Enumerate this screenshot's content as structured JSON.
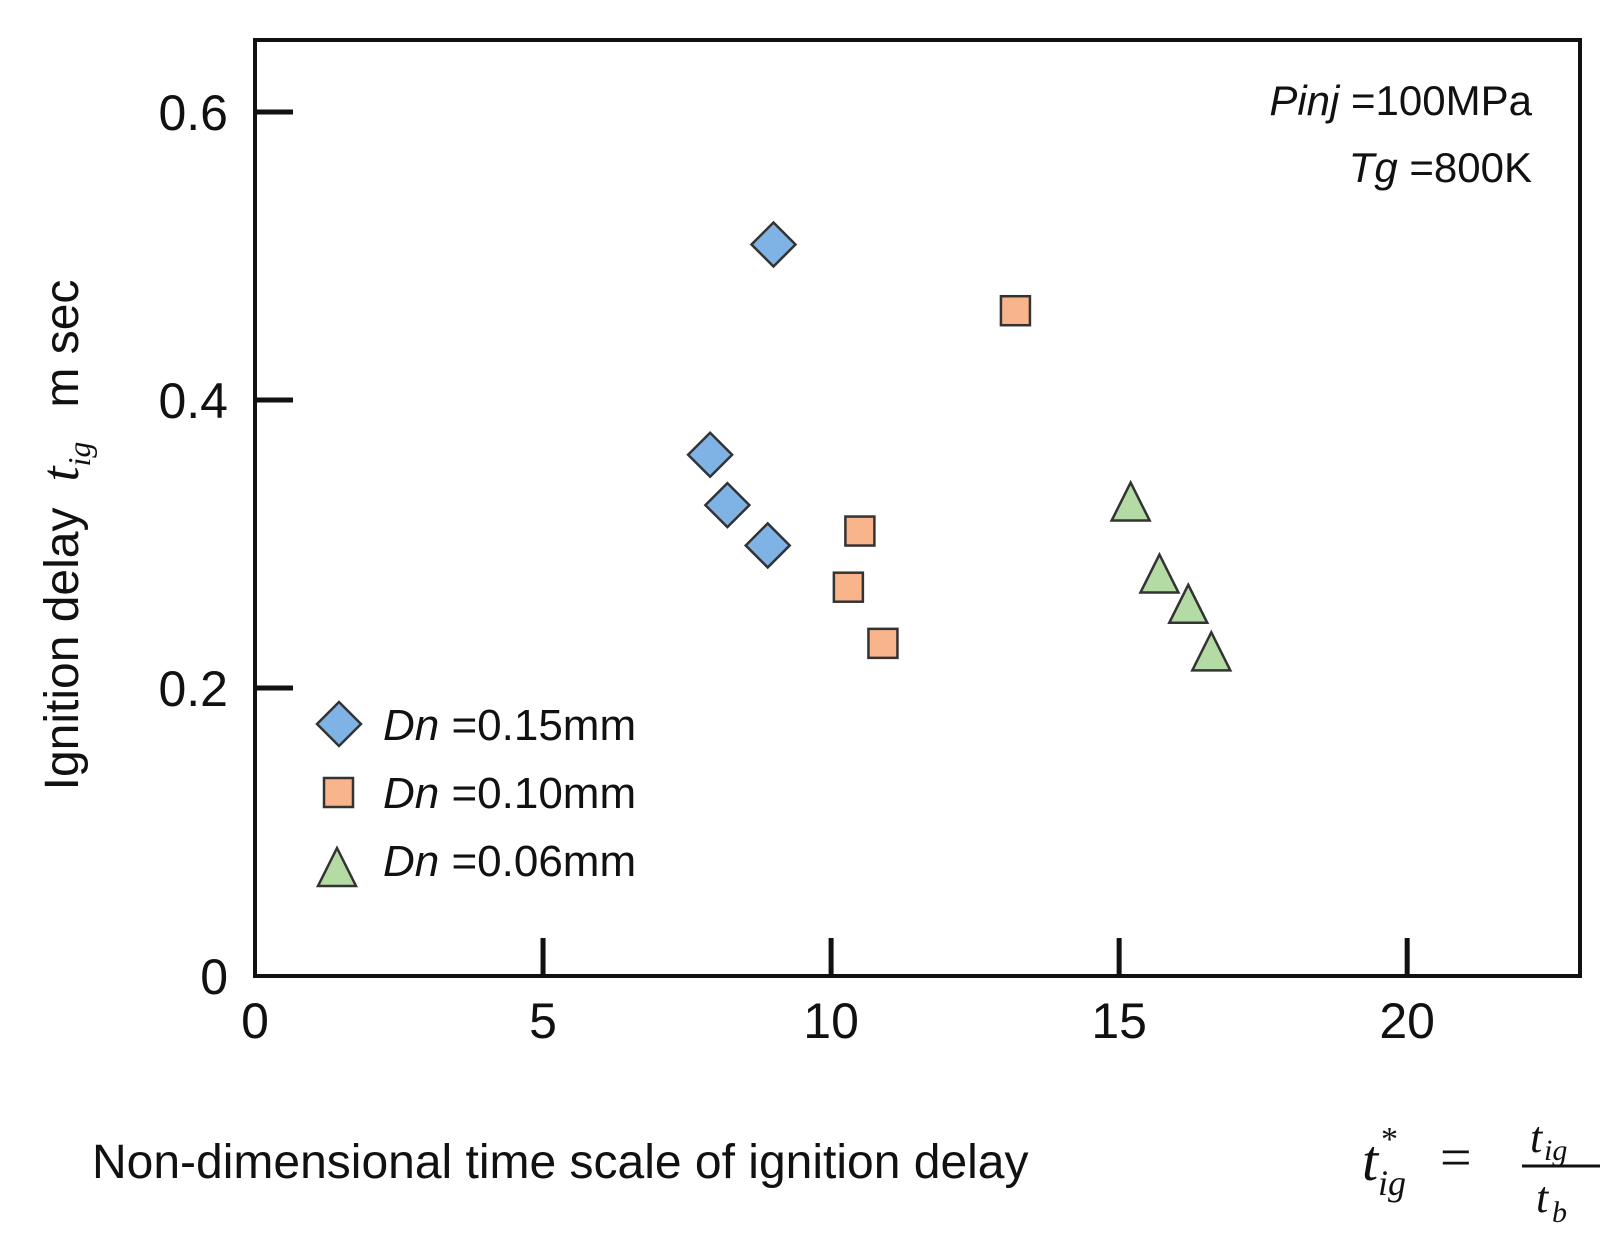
{
  "chart_data": {
    "type": "scatter",
    "title": "",
    "xlabel": "Non-dimensional time scale of ignition delay",
    "xlabel_formula": {
      "lhs_base": "t",
      "lhs_sup": "*",
      "lhs_sub": "ig",
      "equals": "=",
      "num_base": "t",
      "num_sub": "ig",
      "den_base": "t",
      "den_sub": "b"
    },
    "ylabel": "Ignition delay",
    "ylabel_symbol": {
      "base": "t",
      "sub": "ig"
    },
    "ylabel_unit": "m sec",
    "xlim": [
      0,
      23
    ],
    "ylim": [
      0,
      0.65
    ],
    "x_ticks": [
      0,
      5,
      10,
      15,
      20
    ],
    "x_tick_labels": [
      "0",
      "5",
      "10",
      "15",
      "20"
    ],
    "y_ticks": [
      0,
      0.2,
      0.4,
      0.6
    ],
    "y_tick_labels": [
      "0",
      "0.2",
      "0.4",
      "0.6"
    ],
    "grid": false,
    "annotations": [
      {
        "symbol": "Pinj",
        "text": " =100MPa"
      },
      {
        "symbol": "Tg",
        "text": " =800K"
      }
    ],
    "legend_position": "lower-left",
    "series": [
      {
        "name": "Dn =0.15mm",
        "symbol": "Dn",
        "label": " =0.15mm",
        "marker": "diamond",
        "color": "#7fb3e6",
        "x": [
          9.0,
          7.9,
          8.2,
          8.9
        ],
        "y": [
          0.508,
          0.362,
          0.327,
          0.299
        ]
      },
      {
        "name": "Dn =0.10mm",
        "symbol": "Dn",
        "label": " =0.10mm",
        "marker": "square",
        "color": "#f8b48a",
        "x": [
          13.2,
          10.5,
          10.3,
          10.9
        ],
        "y": [
          0.462,
          0.309,
          0.27,
          0.231
        ]
      },
      {
        "name": "Dn =0.06mm",
        "symbol": "Dn",
        "label": " =0.06mm",
        "marker": "triangle",
        "color": "#b4dba3",
        "x": [
          15.2,
          15.7,
          16.2,
          16.6
        ],
        "y": [
          0.326,
          0.276,
          0.255,
          0.222
        ]
      }
    ]
  }
}
